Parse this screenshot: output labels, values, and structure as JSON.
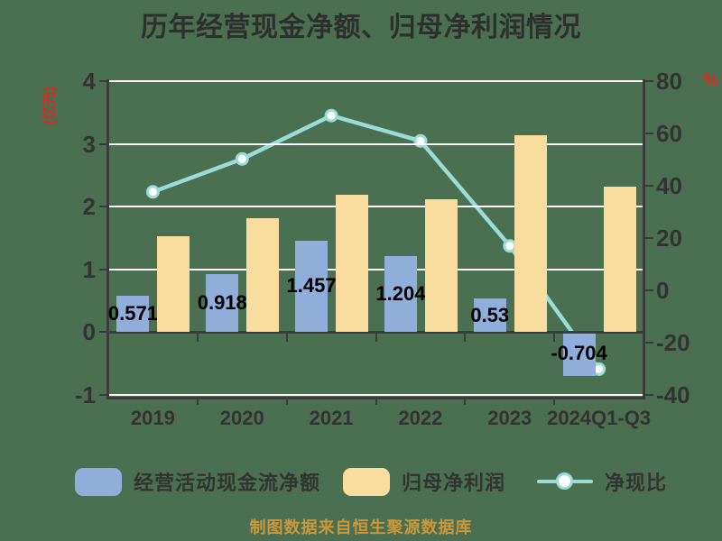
{
  "chart_data": {
    "type": "bar+line",
    "title": "历年经营现金净额、归母净利润情况",
    "footer": "制图数据来自恒生聚源数据库",
    "categories": [
      "2019",
      "2020",
      "2021",
      "2022",
      "2023",
      "2024Q1-Q3"
    ],
    "series": [
      {
        "name": "经营活动现金流净额",
        "type": "bar",
        "axis": "left",
        "color": "#91aedb",
        "values": [
          0.571,
          0.918,
          1.457,
          1.204,
          0.53,
          -0.704
        ],
        "labels": [
          "0.571",
          "0.918",
          "1.457",
          "1.204",
          "0.53",
          "-0.704"
        ],
        "show_labels": true
      },
      {
        "name": "归母净利润",
        "type": "bar",
        "axis": "left",
        "color": "#f9dd9e",
        "values": [
          1.52,
          1.82,
          2.18,
          2.11,
          3.13,
          2.32
        ],
        "show_labels": false
      },
      {
        "name": "净现比",
        "type": "line",
        "axis": "right",
        "color": "#9bdbd8",
        "marker_fill": "#fdfefe",
        "values": [
          37.6,
          50.2,
          66.8,
          57.1,
          16.9,
          -30.3
        ]
      }
    ],
    "left_axis": {
      "unit": "(亿元)",
      "ticks": [
        4,
        3,
        2,
        1,
        0,
        -1
      ],
      "range": [
        -1,
        4
      ],
      "gridlines": [
        4,
        3,
        2,
        1,
        -1
      ],
      "zero_line": 0
    },
    "right_axis": {
      "unit": "%",
      "ticks": [
        80,
        60,
        40,
        20,
        0,
        -20,
        -40
      ],
      "range": [
        -40,
        80
      ]
    },
    "legend_position": "bottom",
    "grid": true
  },
  "colors": {
    "background": "#4b7051",
    "gridline": "#fdfdf8",
    "axis": "#3c3c3c",
    "accent_red": "#d92b22",
    "footer_gold": "#c9973c"
  }
}
